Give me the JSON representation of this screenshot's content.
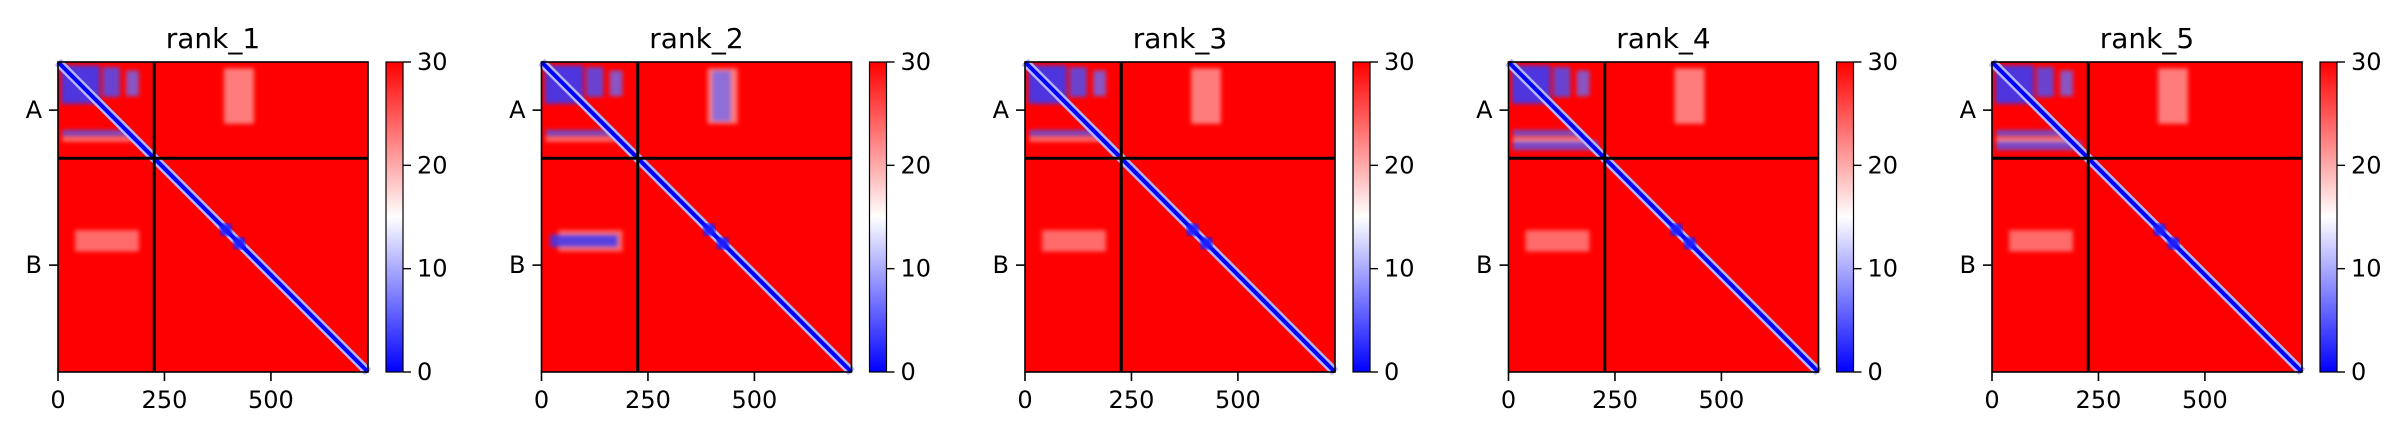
{
  "chart_data": {
    "type": "heatmap",
    "colormap": "bwr",
    "color_range": [
      0,
      30
    ],
    "colorbar_ticks": [
      0,
      10,
      20,
      30
    ],
    "x_range": [
      0,
      728
    ],
    "x_ticks": [
      0,
      250,
      500
    ],
    "chain_boundary": 226,
    "chain_labels": [
      "A",
      "B"
    ],
    "panels": [
      {
        "title": "rank_1"
      },
      {
        "title": "rank_2"
      },
      {
        "title": "rank_3"
      },
      {
        "title": "rank_4"
      },
      {
        "title": "rank_5"
      }
    ]
  }
}
